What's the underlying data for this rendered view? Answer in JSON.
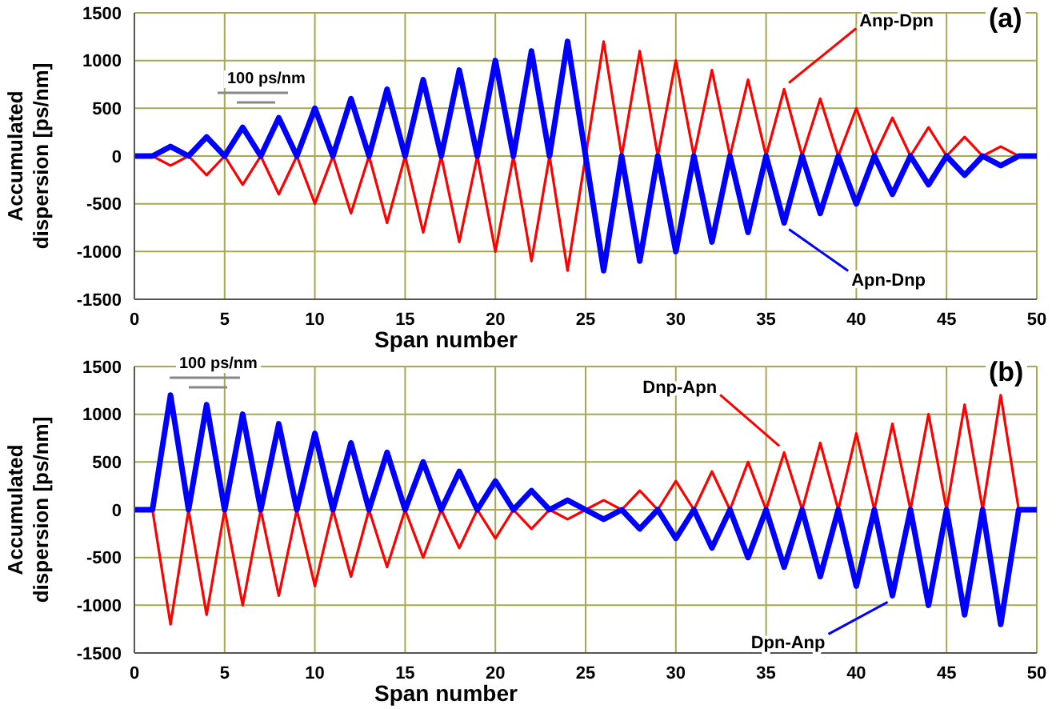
{
  "chart_data": [
    {
      "type": "line",
      "xlabel": "Span number",
      "ylabel": "Accumulated dispersion [ps/nm]",
      "annotations": [
        "(a)",
        "100 ps/nm"
      ],
      "x": [
        0,
        1,
        2,
        3,
        4,
        5,
        6,
        7,
        8,
        9,
        10,
        11,
        12,
        13,
        14,
        15,
        16,
        17,
        18,
        19,
        20,
        21,
        22,
        23,
        24,
        25,
        26,
        27,
        28,
        29,
        30,
        31,
        32,
        33,
        34,
        35,
        36,
        37,
        38,
        39,
        40,
        41,
        42,
        43,
        44,
        45,
        46,
        47,
        48,
        49,
        50
      ],
      "series": [
        {
          "name": "Anp-Dpn",
          "color": "#ff0000",
          "values": [
            0,
            0,
            -100,
            0,
            -200,
            0,
            -300,
            0,
            -400,
            0,
            -500,
            0,
            -600,
            0,
            -700,
            0,
            -800,
            0,
            -900,
            0,
            -1000,
            0,
            -1100,
            0,
            -1200,
            0,
            1200,
            0,
            1100,
            0,
            1000,
            0,
            900,
            0,
            800,
            0,
            700,
            0,
            600,
            0,
            500,
            0,
            400,
            0,
            300,
            0,
            200,
            0,
            100,
            0,
            0
          ]
        },
        {
          "name": "Apn-Dnp",
          "color": "#0000ff",
          "values": [
            0,
            0,
            100,
            0,
            200,
            0,
            300,
            0,
            400,
            0,
            500,
            0,
            600,
            0,
            700,
            0,
            800,
            0,
            900,
            0,
            1000,
            0,
            1100,
            0,
            1200,
            0,
            -1200,
            0,
            -1100,
            0,
            -1000,
            0,
            -900,
            0,
            -800,
            0,
            -700,
            0,
            -600,
            0,
            -500,
            0,
            -400,
            0,
            -300,
            0,
            -200,
            0,
            -100,
            0,
            0
          ]
        }
      ],
      "xlim": [
        0,
        50
      ],
      "xticks": [
        0,
        5,
        10,
        15,
        20,
        25,
        30,
        35,
        40,
        45,
        50
      ],
      "ylim": [
        -1500,
        1500
      ],
      "yticks": [
        -1500,
        -1000,
        -500,
        0,
        500,
        1000,
        1500
      ],
      "grid": true,
      "legend": false,
      "marker": "none",
      "line_style": "solid"
    },
    {
      "type": "line",
      "xlabel": "Span number",
      "ylabel": "Accumulated dispersion [ps/nm]",
      "annotations": [
        "(b)",
        "100 ps/nm"
      ],
      "x": [
        0,
        1,
        2,
        3,
        4,
        5,
        6,
        7,
        8,
        9,
        10,
        11,
        12,
        13,
        14,
        15,
        16,
        17,
        18,
        19,
        20,
        21,
        22,
        23,
        24,
        25,
        26,
        27,
        28,
        29,
        30,
        31,
        32,
        33,
        34,
        35,
        36,
        37,
        38,
        39,
        40,
        41,
        42,
        43,
        44,
        45,
        46,
        47,
        48,
        49,
        50
      ],
      "series": [
        {
          "name": "Dnp-Apn",
          "color": "#ff0000",
          "values": [
            0,
            0,
            -1200,
            0,
            -1100,
            0,
            -1000,
            0,
            -900,
            0,
            -800,
            0,
            -700,
            0,
            -600,
            0,
            -500,
            0,
            -400,
            0,
            -300,
            0,
            -200,
            0,
            -100,
            0,
            100,
            0,
            200,
            0,
            300,
            0,
            400,
            0,
            500,
            0,
            600,
            0,
            700,
            0,
            800,
            0,
            900,
            0,
            1000,
            0,
            1100,
            0,
            1200,
            0,
            0
          ]
        },
        {
          "name": "Dpn-Anp",
          "color": "#0000ff",
          "values": [
            0,
            0,
            1200,
            0,
            1100,
            0,
            1000,
            0,
            900,
            0,
            800,
            0,
            700,
            0,
            600,
            0,
            500,
            0,
            400,
            0,
            300,
            0,
            200,
            0,
            100,
            0,
            -100,
            0,
            -200,
            0,
            -300,
            0,
            -400,
            0,
            -500,
            0,
            -600,
            0,
            -700,
            0,
            -800,
            0,
            -900,
            0,
            -1000,
            0,
            -1100,
            0,
            -1200,
            0,
            0
          ]
        }
      ],
      "xlim": [
        0,
        50
      ],
      "xticks": [
        0,
        5,
        10,
        15,
        20,
        25,
        30,
        35,
        40,
        45,
        50
      ],
      "ylim": [
        -1500,
        1500
      ],
      "yticks": [
        -1500,
        -1000,
        -500,
        0,
        500,
        1000,
        1500
      ],
      "grid": true,
      "legend": false,
      "marker": "none",
      "line_style": "solid"
    }
  ]
}
